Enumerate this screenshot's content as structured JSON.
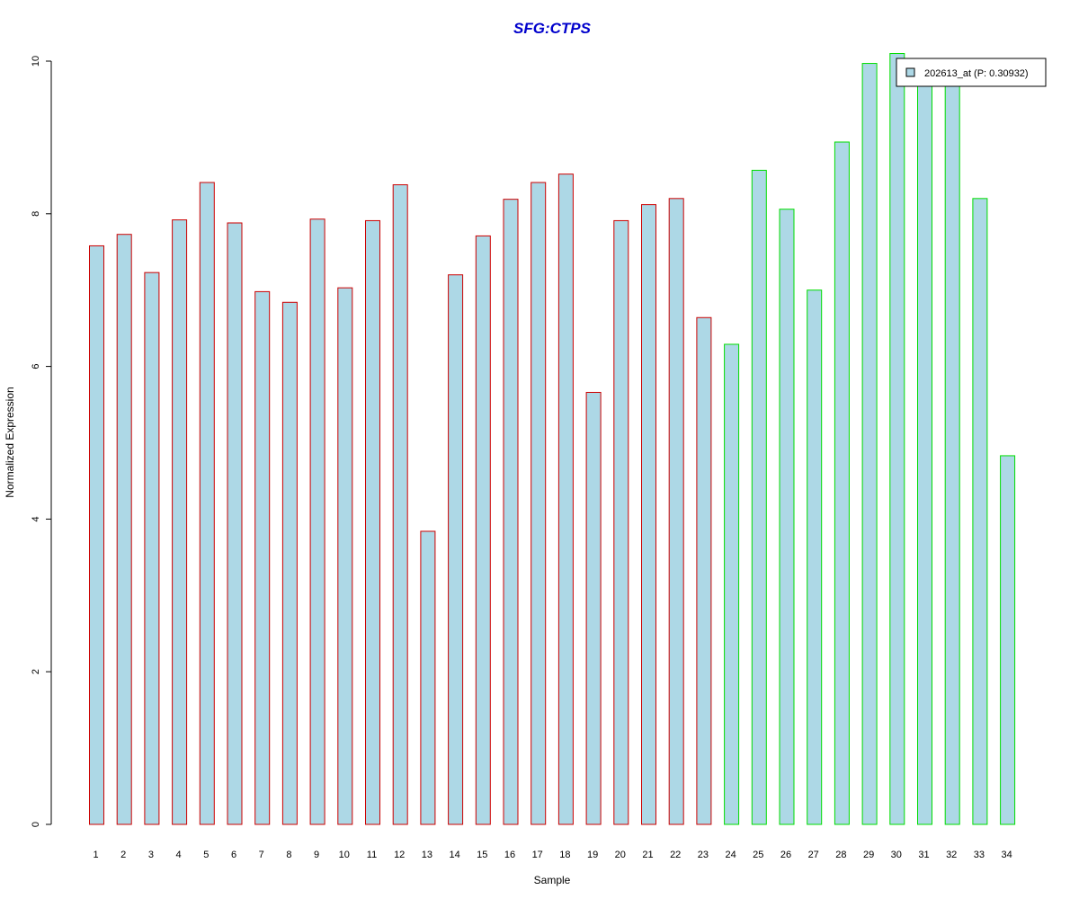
{
  "chart_data": {
    "type": "bar",
    "title": "SFG:CTPS",
    "xlabel": "Sample",
    "ylabel": "Normalized Expression",
    "categories": [
      "1",
      "2",
      "3",
      "4",
      "5",
      "6",
      "7",
      "8",
      "9",
      "10",
      "11",
      "12",
      "13",
      "14",
      "15",
      "16",
      "17",
      "18",
      "19",
      "20",
      "21",
      "22",
      "23",
      "24",
      "25",
      "26",
      "27",
      "28",
      "29",
      "30",
      "31",
      "32",
      "33",
      "34"
    ],
    "series": [
      {
        "name": "202613_at (P: 0.30932)",
        "values": [
          7.58,
          7.73,
          7.23,
          7.92,
          8.41,
          7.88,
          6.98,
          6.84,
          7.93,
          7.03,
          7.91,
          8.38,
          3.84,
          7.2,
          7.71,
          8.19,
          8.41,
          8.52,
          5.66,
          7.91,
          8.12,
          8.2,
          6.64,
          6.29,
          8.57,
          8.06,
          7.0,
          8.94,
          9.97,
          10.1,
          9.7,
          9.7,
          8.2,
          4.83
        ]
      }
    ],
    "bar_groups": [
      {
        "from": 1,
        "to": 23,
        "border_color": "#cc0000"
      },
      {
        "from": 24,
        "to": 34,
        "border_color": "#00dd00"
      }
    ],
    "fill_color": "#add8e6",
    "title_color": "#0000cc",
    "ylim": [
      0,
      10
    ],
    "yticks": [
      0,
      2,
      4,
      6,
      8,
      10
    ],
    "grid": false,
    "legend_position": "top-right"
  }
}
